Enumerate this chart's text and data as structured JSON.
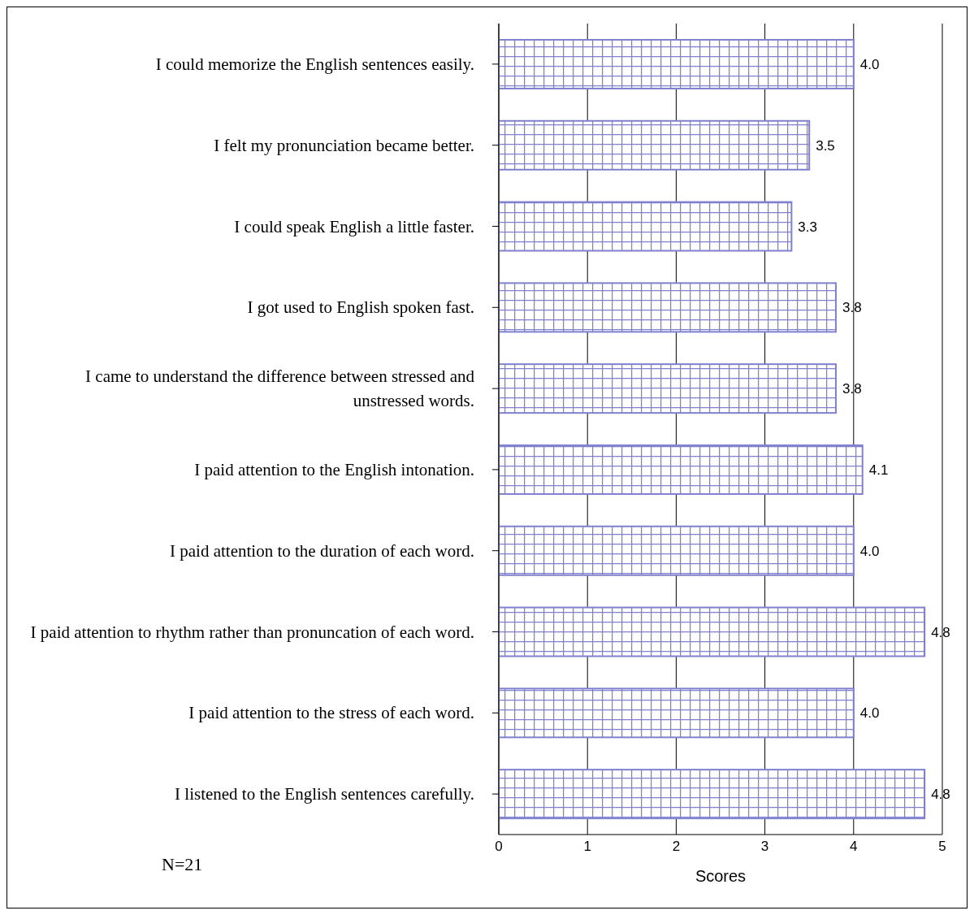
{
  "chart_data": {
    "type": "bar",
    "orientation": "horizontal",
    "categories": [
      "I could memorize the English sentences easily.",
      "I felt my pronunciation became better.",
      "I could speak English a little faster.",
      "I got used to English spoken fast.",
      "I came to understand the difference between stressed and unstressed words.",
      "I paid attention to the English intonation.",
      "I paid attention to the duration of each word.",
      "I paid attention to rhythm rather than pronuncation of each word.",
      "I paid attention to the stress of each word.",
      "I listened to the English sentences carefully."
    ],
    "values": [
      4.0,
      3.5,
      3.3,
      3.8,
      3.8,
      4.1,
      4.0,
      4.8,
      4.0,
      4.8
    ],
    "value_labels": [
      "4.0",
      "3.5",
      "3.3",
      "3.8",
      "3.8",
      "4.1",
      "4.0",
      "4.8",
      "4.0",
      "4.8"
    ],
    "color": "#8080d0",
    "xlim": [
      0,
      5
    ],
    "xticks": [
      0,
      1,
      2,
      3,
      4,
      5
    ],
    "xlabel": "Scores",
    "grid": "x",
    "annotations": [
      "N=21"
    ]
  }
}
